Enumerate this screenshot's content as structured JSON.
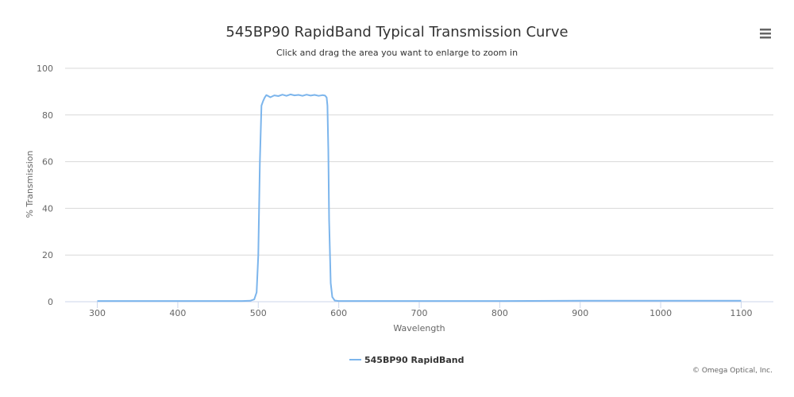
{
  "chart_data": {
    "type": "line",
    "title": "545BP90 RapidBand Typical Transmission Curve",
    "subtitle": "Click and drag the area you want to enlarge to zoom in",
    "xlabel": "Wavelength",
    "ylabel": "% Transmission",
    "xlim": [
      260,
      1140
    ],
    "ylim": [
      0,
      100
    ],
    "x_ticks": [
      300,
      400,
      500,
      600,
      700,
      800,
      900,
      1000,
      1100
    ],
    "y_ticks": [
      0,
      20,
      40,
      60,
      80,
      100
    ],
    "grid": "horizontal",
    "legend": "bottom-center",
    "series": [
      {
        "name": "545BP90 RapidBand",
        "color": "#7cb5ec",
        "x": [
          300,
          400,
          480,
          490,
          495,
          498,
          500,
          502,
          504,
          506,
          508,
          510,
          512,
          515,
          520,
          525,
          530,
          535,
          540,
          545,
          550,
          555,
          560,
          565,
          570,
          575,
          580,
          583,
          585,
          586,
          587,
          588,
          590,
          592,
          595,
          600,
          700,
          800,
          900,
          1000,
          1100
        ],
        "values": [
          0.3,
          0.3,
          0.3,
          0.4,
          1,
          4,
          20,
          60,
          84,
          86,
          87.5,
          88.5,
          88.2,
          87.6,
          88.4,
          88.1,
          88.7,
          88.2,
          88.8,
          88.4,
          88.6,
          88.2,
          88.7,
          88.3,
          88.6,
          88.2,
          88.5,
          88.3,
          87.5,
          84,
          65,
          35,
          8,
          2,
          0.5,
          0.3,
          0.3,
          0.3,
          0.4,
          0.4,
          0.4
        ]
      }
    ]
  },
  "credits": "© Omega Optical, Inc.",
  "menu_icon": "hamburger-menu-icon"
}
